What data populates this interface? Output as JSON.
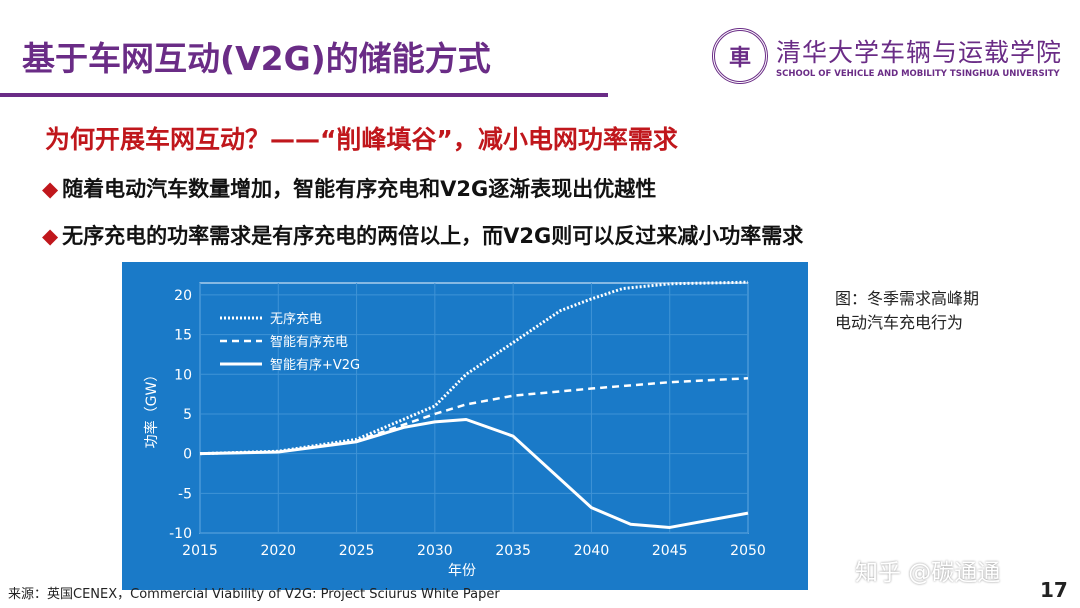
{
  "title": "基于车网互动(V2G)的储能方式",
  "logo": {
    "cn": "清华大学车辆与运载学院",
    "en": "SCHOOL OF VEHICLE AND MOBILITY TSINGHUA UNIVERSITY",
    "seal": "車"
  },
  "subtitle": "为何开展车网互动？——“削峰填谷”，减小电网功率需求",
  "bullets": [
    "随着电动汽车数量增加，智能有序充电和V2G逐渐表现出优越性",
    "无序充电的功率需求是有序充电的两倍以上，而V2G则可以反过来减小功率需求"
  ],
  "caption": [
    "图：冬季需求高峰期",
    "电动汽车充电行为"
  ],
  "source": "来源：英国CENEX，Commercial Viability of V2G: Project Sciurus White Paper",
  "watermark": "知乎 @碳通通",
  "page_number": "17",
  "chart_data": {
    "type": "line",
    "xlabel": "年份",
    "ylabel": "功率（GW）",
    "xlim": [
      2015,
      2050
    ],
    "ylim": [
      -10,
      22
    ],
    "xticks": [
      2015,
      2020,
      2025,
      2030,
      2035,
      2040,
      2045,
      2050
    ],
    "yticks": [
      -10,
      -5,
      0,
      5,
      10,
      15,
      20
    ],
    "grid": true,
    "legend": "top-left",
    "background": "#1a7ac8",
    "series": [
      {
        "name": "无序充电",
        "style": "dotted",
        "x": [
          2015,
          2020,
          2025,
          2030,
          2032,
          2035,
          2038,
          2040,
          2042,
          2045,
          2050
        ],
        "y": [
          0,
          0.3,
          1.8,
          6,
          10,
          14,
          18,
          19.5,
          20.8,
          21.4,
          21.6
        ]
      },
      {
        "name": "智能有序充电",
        "style": "dashed",
        "x": [
          2015,
          2020,
          2025,
          2030,
          2032,
          2035,
          2040,
          2045,
          2050
        ],
        "y": [
          0,
          0.2,
          1.6,
          5,
          6.2,
          7.3,
          8.2,
          9,
          9.5
        ]
      },
      {
        "name": "智能有序+V2G",
        "style": "solid",
        "x": [
          2015,
          2020,
          2025,
          2028,
          2030,
          2032,
          2035,
          2040,
          2042.5,
          2045,
          2050
        ],
        "y": [
          0,
          0.2,
          1.5,
          3.3,
          4,
          4.3,
          2.2,
          -6.8,
          -8.9,
          -9.3,
          -7.5
        ]
      }
    ]
  }
}
